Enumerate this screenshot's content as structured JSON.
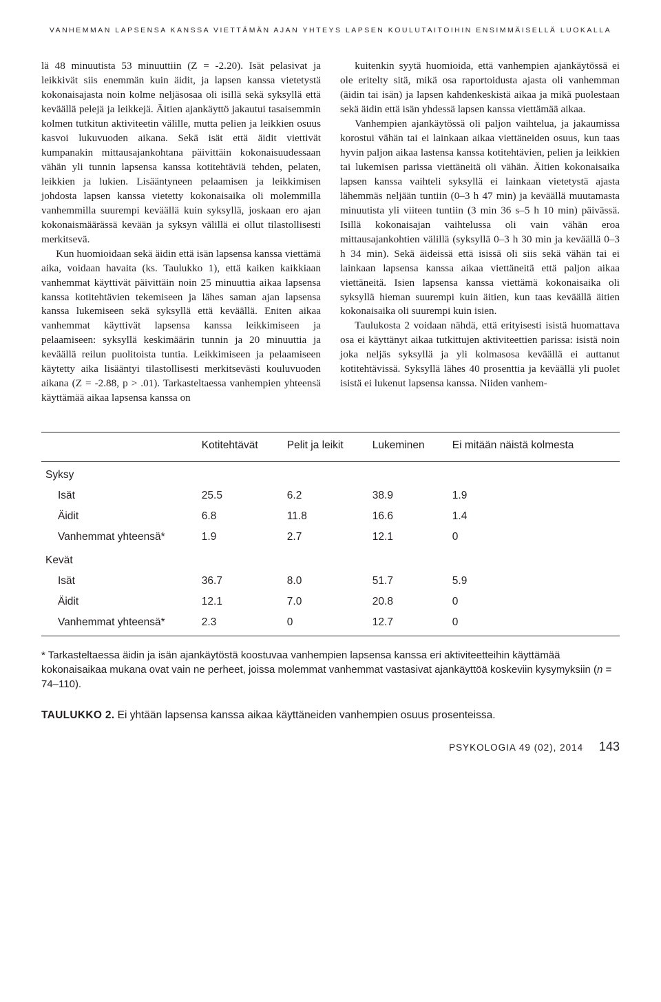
{
  "runningHead": "VANHEMMAN LAPSENSA KANSSA VIETTÄMÄN AJAN YHTEYS LAPSEN KOULUTAITOIHIN ENSIMMÄISELLÄ LUOKALLA",
  "body": {
    "p1": "lä 48 minuutista 53 minuuttiin (Z = -2.20). Isät pelasivat ja leikkivät siis enemmän kuin äidit, ja lapsen kanssa vietetystä kokonaisajasta noin kolme neljäsosaa oli isillä sekä syksyllä että keväällä pelejä ja leikkejä. Äitien ajankäyttö jakautui tasaisemmin kolmen tutkitun aktiviteetin välille, mutta pelien ja leikkien osuus kasvoi lukuvuoden aikana. Sekä isät että äidit viettivät kumpanakin mittausajankohtana päivittäin kokonaisuudessaan vähän yli tunnin lapsensa kanssa kotitehtäviä tehden, pelaten, leikkien ja lukien. Lisääntyneen pelaamisen ja leikkimisen johdosta lapsen kanssa vietetty kokonaisaika oli molemmilla vanhemmilla suurempi keväällä kuin syksyllä, joskaan ero ajan kokonaismäärässä kevään ja syksyn välillä ei ollut tilastollisesti merkitsevä.",
    "p2": "Kun huomioidaan sekä äidin että isän lapsensa kanssa viettämä aika, voidaan havaita (ks. Taulukko 1), että kaiken kaikkiaan vanhemmat käyttivät päivittäin noin 25 minuuttia aikaa lapsensa kanssa kotitehtävien tekemiseen ja lähes saman ajan lapsensa kanssa lukemiseen sekä syksyllä että keväällä. Eniten aikaa vanhemmat käyttivät lapsensa kanssa leikkimiseen ja pelaamiseen: syksyllä keskimäärin tunnin ja 20 minuuttia ja keväällä reilun puolitoista tuntia. Leikkimiseen ja pelaamiseen käytetty aika lisääntyi tilastollisesti merkitsevästi kouluvuoden aikana (Z = -2.88, p > .01). Tarkasteltaessa vanhempien yhteensä käyttämää aikaa lapsensa kanssa on",
    "p3": "kuitenkin syytä huomioida, että vanhempien ajankäytössä ei ole eritelty sitä, mikä osa raportoidusta ajasta oli vanhemman (äidin tai isän) ja lapsen kahdenkeskistä aikaa ja mikä puolestaan sekä äidin että isän yhdessä lapsen kanssa viettämää aikaa.",
    "p4": "Vanhempien ajankäytössä oli paljon vaihtelua, ja jakaumissa korostui vähän tai ei lainkaan aikaa viettäneiden osuus, kun taas hyvin paljon aikaa lastensa kanssa kotitehtävien, pelien ja leikkien tai lukemisen parissa viettäneitä oli vähän. Äitien kokonaisaika lapsen kanssa vaihteli syksyllä ei lainkaan vietetystä ajasta lähemmäs neljään tuntiin (0–3 h 47 min) ja keväällä muutamasta minuutista yli viiteen tuntiin (3 min 36 s–5 h 10 min) päivässä. Isillä kokonaisajan vaihtelussa oli vain vähän eroa mittausajankohtien välillä (syksyllä 0–3 h 30 min ja keväällä 0–3 h 34 min). Sekä äideissä että isissä oli siis sekä vähän tai ei lainkaan lapsensa kanssa aikaa viettäneitä että paljon aikaa viettäneitä. Isien lapsensa kanssa viettämä kokonaisaika oli syksyllä hieman suurempi kuin äitien, kun taas keväällä äitien kokonaisaika oli suurempi kuin isien.",
    "p5": "Taulukosta 2 voidaan nähdä, että erityisesti isistä huomattava osa ei käyttänyt aikaa tutkittujen aktiviteettien parissa: isistä noin joka neljäs syksyllä ja yli kolmasosa keväällä ei auttanut kotitehtävissä. Syksyllä lähes 40 prosenttia ja keväällä yli puolet isistä ei lukenut lapsensa kanssa. Niiden vanhem-"
  },
  "table": {
    "headers": [
      "",
      "Kotitehtävät",
      "Pelit ja leikit",
      "Lukeminen",
      "Ei mitään näistä kolmesta"
    ],
    "sections": [
      {
        "label": "Syksy",
        "rows": [
          {
            "label": "Isät",
            "values": [
              "25.5",
              "6.2",
              "38.9",
              "1.9"
            ]
          },
          {
            "label": "Äidit",
            "values": [
              "6.8",
              "11.8",
              "16.6",
              "1.4"
            ]
          },
          {
            "label": "Vanhemmat yhteensä*",
            "values": [
              "1.9",
              "2.7",
              "12.1",
              "0"
            ]
          }
        ]
      },
      {
        "label": "Kevät",
        "rows": [
          {
            "label": "Isät",
            "values": [
              "36.7",
              "8.0",
              "51.7",
              "5.9"
            ]
          },
          {
            "label": "Äidit",
            "values": [
              "12.1",
              "7.0",
              "20.8",
              "0"
            ]
          },
          {
            "label": "Vanhemmat yhteensä*",
            "values": [
              "2.3",
              "0",
              "12.7",
              "0"
            ]
          }
        ]
      }
    ],
    "notePrefix": "* Tarkasteltaessa äidin ja isän ajankäytöstä koostuvaa vanhempien lapsensa kanssa eri aktiviteetteihin käyttämää kokonaisaikaa mukana ovat vain ne perheet, joissa molemmat vanhemmat vastasivat ajankäyttöä koskeviin kysymyksiin (",
    "noteItalic": "n",
    "noteSuffix": " = 74–110).",
    "captionLabel": "TAULUKKO 2.",
    "captionText": " Ei yhtään lapsensa kanssa aikaa käyttäneiden vanhempien osuus prosenteissa."
  },
  "footer": {
    "journal": "PSYKOLOGIA 49 (02), 2014",
    "page": "143"
  }
}
